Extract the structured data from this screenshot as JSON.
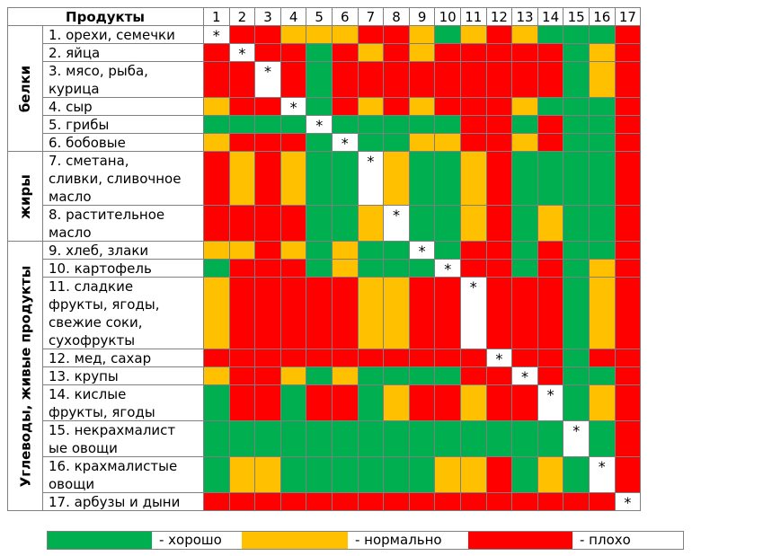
{
  "colors": {
    "G": "#00b050",
    "Y": "#ffc000",
    "R": "#ff0000",
    "W": "#ffffff"
  },
  "header": {
    "title": "Продукты",
    "columns": [
      "1",
      "2",
      "3",
      "4",
      "5",
      "6",
      "7",
      "8",
      "9",
      "10",
      "11",
      "12",
      "13",
      "14",
      "15",
      "16",
      "17"
    ]
  },
  "groups": [
    {
      "label": "белки",
      "rows": [
        1,
        6
      ]
    },
    {
      "label": "жиры",
      "rows": [
        7,
        8
      ]
    },
    {
      "label": "Углеводы, живые продукты",
      "rows": [
        9,
        17
      ]
    }
  ],
  "rows": [
    {
      "name": "1. орехи, семечки",
      "cells": "WRRYYYRRYGYRYGGGR"
    },
    {
      "name": "2. яйца",
      "cells": "RWRRGRYRYRRRRRGYR"
    },
    {
      "name": "3. мясо, рыба,\nкурица",
      "cells": "RRWRGRRRRRRRRRGYR"
    },
    {
      "name": "4. сыр",
      "cells": "YRRWGRYRYRRRYGGGR"
    },
    {
      "name": "5. грибы",
      "cells": "GGGGWGGGGGRRGRGGR"
    },
    {
      "name": "6. бобовые",
      "cells": "YRRRGWGGYYRRYRGGR"
    },
    {
      "name": "7. сметана,\nсливки, сливочное\nмасло",
      "cells": "RYRYGGWYGGYRGGGGR"
    },
    {
      "name": "8. растительное\nмасло",
      "cells": "RRRRGGYWGGYRGYGGR"
    },
    {
      "name": "9. хлеб, злаки",
      "cells": "YYRYGYGGWGRRGRGGR"
    },
    {
      "name": "10.  картофель",
      "cells": "GRRRGYGGGWRRGRGYR"
    },
    {
      "name": "11.  сладкие\nфрукты, ягоды,\nсвежие соки,\nсухофрукты",
      "cells": "YRRRRRYYRRWRRRGYR"
    },
    {
      "name": "12.  мед, сахар",
      "cells": "RRRRRRRRRRRWRRGRR"
    },
    {
      "name": "13. крупы",
      "cells": "YRRYGYGGGGRRWRGGR"
    },
    {
      "name": "14. кислые\nфрукты, ягоды",
      "cells": "GRRGRRGYRRYRRWGYR"
    },
    {
      "name": "15. некрахмалист\nые овощи",
      "cells": "GGGGGGGGGGGGGGWGR"
    },
    {
      "name": "16. крахмалистые\nовощи",
      "cells": "GYYGGGGGGYYRGYGWR"
    },
    {
      "name": "17. арбузы и дыни",
      "cells": "RRRRRRRRRRRRRRRRW"
    }
  ],
  "star": "*",
  "legend": [
    {
      "color": "G",
      "label": " - хорошо"
    },
    {
      "color": "Y",
      "label": " - нормально"
    },
    {
      "color": "R",
      "label": " - плохо"
    }
  ]
}
